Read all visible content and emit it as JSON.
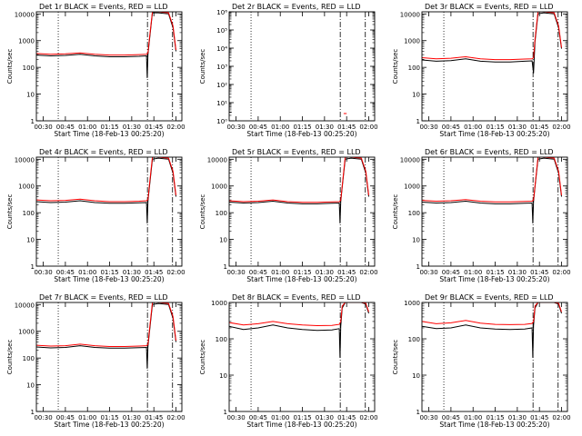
{
  "x_ticks": [
    "00:30",
    "00:45",
    "01:00",
    "01:15",
    "01:30",
    "01:45",
    "02:00"
  ],
  "xlabel": "Start Time (18-Feb-13 00:25:20)",
  "ylabel": "Counts/sec",
  "colors": {
    "events": "#000000",
    "lld": "#ff0000"
  },
  "chart_data": [
    {
      "type": "line",
      "title": "Det 1r BLACK = Events, RED = LLD",
      "ylog": true,
      "ylim": [
        1,
        12000
      ],
      "y_ticks": [
        "1",
        "10",
        "100",
        "1000",
        "10000"
      ],
      "xlim": [
        "00:25:20",
        "02:04"
      ],
      "series": [
        {
          "name": "Events",
          "color": "#000000",
          "x": [
            "00:25:20",
            "00:35",
            "00:45",
            "00:55",
            "01:05",
            "01:15",
            "01:25",
            "01:35",
            "01:40",
            "01:40:30",
            "01:41",
            "01:42",
            "01:44",
            "01:48",
            "01:55",
            "01:58",
            "02:00"
          ],
          "y": [
            290,
            270,
            280,
            310,
            270,
            250,
            250,
            260,
            270,
            40,
            300,
            1000,
            11000,
            11000,
            10000,
            3000,
            400
          ]
        },
        {
          "name": "LLD",
          "color": "#ff0000",
          "x": [
            "00:25:20",
            "00:35",
            "00:45",
            "00:55",
            "01:05",
            "01:15",
            "01:25",
            "01:35",
            "01:40",
            "01:41",
            "01:42",
            "01:44",
            "01:48",
            "01:55",
            "01:58",
            "02:00"
          ],
          "y": [
            330,
            310,
            320,
            350,
            310,
            290,
            290,
            300,
            310,
            350,
            1200,
            12000,
            12000,
            11000,
            3500,
            450
          ]
        }
      ]
    },
    {
      "type": "line",
      "title": "Det 2r BLACK = Events, RED = LLD",
      "ylog": true,
      "ylim": [
        1,
        1000000
      ],
      "y_ticks": [
        "10⁰",
        "10¹",
        "10²",
        "10³",
        "10⁴",
        "10⁵",
        "10⁶"
      ],
      "xlim": [
        "00:25:20",
        "02:04"
      ],
      "series": [
        {
          "name": "Events",
          "color": "#000000",
          "x": [
            "00:25:20",
            "00:27"
          ],
          "y": [
            3,
            3
          ]
        },
        {
          "name": "LLD",
          "color": "#ff0000",
          "x": [
            "01:43",
            "01:45"
          ],
          "y": [
            2.5,
            2.5
          ]
        }
      ]
    },
    {
      "type": "line",
      "title": "Det 3r BLACK = Events, RED = LLD",
      "ylog": true,
      "ylim": [
        1,
        12000
      ],
      "y_ticks": [
        "1",
        "10",
        "100",
        "1000",
        "10000"
      ],
      "xlim": [
        "00:25:20",
        "02:04"
      ],
      "series": [
        {
          "name": "Events",
          "color": "#000000",
          "x": [
            "00:25:20",
            "00:35",
            "00:45",
            "00:55",
            "01:05",
            "01:15",
            "01:25",
            "01:35",
            "01:40",
            "01:41",
            "01:42",
            "01:44",
            "01:48",
            "01:55",
            "01:58",
            "02:00"
          ],
          "y": [
            190,
            170,
            180,
            210,
            170,
            160,
            160,
            170,
            175,
            60,
            900,
            10000,
            11000,
            10000,
            3000,
            500
          ]
        },
        {
          "name": "LLD",
          "color": "#ff0000",
          "x": [
            "00:25:20",
            "00:35",
            "00:45",
            "00:55",
            "01:05",
            "01:15",
            "01:25",
            "01:35",
            "01:40",
            "01:41",
            "01:42",
            "01:44",
            "01:48",
            "01:55",
            "01:58",
            "02:00"
          ],
          "y": [
            230,
            210,
            220,
            250,
            210,
            195,
            195,
            205,
            210,
            230,
            1100,
            12000,
            12000,
            11000,
            3500,
            550
          ]
        }
      ]
    },
    {
      "type": "line",
      "title": "Det 4r BLACK = Events, RED = LLD",
      "ylog": true,
      "ylim": [
        1,
        12000
      ],
      "y_ticks": [
        "1",
        "10",
        "100",
        "1000",
        "10000"
      ],
      "xlim": [
        "00:25:20",
        "02:04"
      ],
      "series": [
        {
          "name": "Events",
          "color": "#000000",
          "x": [
            "00:25:20",
            "00:35",
            "00:45",
            "00:55",
            "01:05",
            "01:15",
            "01:25",
            "01:35",
            "01:40",
            "01:40:30",
            "01:41",
            "01:42",
            "01:44",
            "01:48",
            "01:55",
            "01:58",
            "02:00"
          ],
          "y": [
            260,
            240,
            250,
            280,
            240,
            225,
            225,
            235,
            240,
            40,
            270,
            900,
            10000,
            11000,
            10000,
            3000,
            400
          ]
        },
        {
          "name": "LLD",
          "color": "#ff0000",
          "x": [
            "00:25:20",
            "00:35",
            "00:45",
            "00:55",
            "01:05",
            "01:15",
            "01:25",
            "01:35",
            "01:40",
            "01:41",
            "01:42",
            "01:44",
            "01:48",
            "01:55",
            "01:58",
            "02:00"
          ],
          "y": [
            300,
            280,
            290,
            320,
            280,
            260,
            260,
            270,
            280,
            310,
            1100,
            12000,
            12000,
            11000,
            3500,
            450
          ]
        }
      ]
    },
    {
      "type": "line",
      "title": "Det 5r BLACK = Events, RED = LLD",
      "ylog": true,
      "ylim": [
        1,
        12000
      ],
      "y_ticks": [
        "1",
        "10",
        "100",
        "1000",
        "10000"
      ],
      "xlim": [
        "00:25:20",
        "02:04"
      ],
      "series": [
        {
          "name": "Events",
          "color": "#000000",
          "x": [
            "00:25:20",
            "00:35",
            "00:45",
            "00:55",
            "01:05",
            "01:15",
            "01:25",
            "01:35",
            "01:40",
            "01:40:30",
            "01:41",
            "01:42",
            "01:44",
            "01:48",
            "01:55",
            "01:58",
            "02:00"
          ],
          "y": [
            250,
            230,
            240,
            270,
            230,
            215,
            215,
            225,
            230,
            40,
            260,
            900,
            10000,
            11000,
            10000,
            3000,
            400
          ]
        },
        {
          "name": "LLD",
          "color": "#ff0000",
          "x": [
            "00:25:20",
            "00:35",
            "00:45",
            "00:55",
            "01:05",
            "01:15",
            "01:25",
            "01:35",
            "01:40",
            "01:41",
            "01:42",
            "01:44",
            "01:48",
            "01:55",
            "01:58",
            "02:00"
          ],
          "y": [
            280,
            260,
            270,
            300,
            260,
            245,
            245,
            255,
            260,
            290,
            1000,
            12000,
            12000,
            11000,
            3500,
            450
          ]
        }
      ]
    },
    {
      "type": "line",
      "title": "Det 6r BLACK = Events, RED = LLD",
      "ylog": true,
      "ylim": [
        1,
        12000
      ],
      "y_ticks": [
        "1",
        "10",
        "100",
        "1000",
        "10000"
      ],
      "xlim": [
        "00:25:20",
        "02:04"
      ],
      "series": [
        {
          "name": "Events",
          "color": "#000000",
          "x": [
            "00:25:20",
            "00:35",
            "00:45",
            "00:55",
            "01:05",
            "01:15",
            "01:25",
            "01:35",
            "01:40",
            "01:40:30",
            "01:41",
            "01:42",
            "01:44",
            "01:48",
            "01:55",
            "01:58",
            "02:00"
          ],
          "y": [
            250,
            230,
            240,
            270,
            230,
            215,
            215,
            225,
            230,
            40,
            260,
            900,
            10000,
            11000,
            10000,
            3000,
            400
          ]
        },
        {
          "name": "LLD",
          "color": "#ff0000",
          "x": [
            "00:25:20",
            "00:35",
            "00:45",
            "00:55",
            "01:05",
            "01:15",
            "01:25",
            "01:35",
            "01:40",
            "01:41",
            "01:42",
            "01:44",
            "01:48",
            "01:55",
            "01:58",
            "02:00"
          ],
          "y": [
            290,
            270,
            280,
            310,
            270,
            255,
            255,
            265,
            270,
            300,
            1000,
            12000,
            12000,
            11000,
            3500,
            450
          ]
        }
      ]
    },
    {
      "type": "line",
      "title": "Det 7r BLACK = Events, RED = LLD",
      "ylog": true,
      "ylim": [
        1,
        12000
      ],
      "y_ticks": [
        "1",
        "10",
        "100",
        "1000",
        "10000"
      ],
      "xlim": [
        "00:25:20",
        "02:04"
      ],
      "series": [
        {
          "name": "Events",
          "color": "#000000",
          "x": [
            "00:25:20",
            "00:35",
            "00:45",
            "00:55",
            "01:05",
            "01:15",
            "01:25",
            "01:35",
            "01:40",
            "01:40:30",
            "01:41",
            "01:42",
            "01:44",
            "01:48",
            "01:55",
            "01:58",
            "02:00"
          ],
          "y": [
            260,
            240,
            250,
            290,
            250,
            235,
            235,
            245,
            250,
            40,
            270,
            900,
            10000,
            11000,
            10000,
            3000,
            400
          ]
        },
        {
          "name": "LLD",
          "color": "#ff0000",
          "x": [
            "00:25:20",
            "00:35",
            "00:45",
            "00:55",
            "01:05",
            "01:15",
            "01:25",
            "01:35",
            "01:40",
            "01:41",
            "01:42",
            "01:44",
            "01:48",
            "01:55",
            "01:58",
            "02:00"
          ],
          "y": [
            300,
            280,
            290,
            330,
            290,
            270,
            270,
            280,
            290,
            320,
            1100,
            12000,
            12000,
            11000,
            3500,
            450
          ]
        }
      ]
    },
    {
      "type": "line",
      "title": "Det 8r BLACK = Events, RED = LLD",
      "ylog": true,
      "ylim": [
        1,
        1000
      ],
      "y_ticks": [
        "1",
        "10",
        "100",
        "1000"
      ],
      "xlim": [
        "00:25:20",
        "02:04"
      ],
      "series": [
        {
          "name": "Events",
          "color": "#000000",
          "x": [
            "00:25:20",
            "00:35",
            "00:45",
            "00:55",
            "01:05",
            "01:15",
            "01:25",
            "01:35",
            "01:40",
            "01:40:30",
            "01:41",
            "01:42",
            "01:44",
            "01:48",
            "01:55",
            "01:58",
            "02:00"
          ],
          "y": [
            220,
            180,
            200,
            240,
            200,
            180,
            170,
            175,
            190,
            30,
            220,
            700,
            1000,
            1000,
            1000,
            900,
            500
          ]
        },
        {
          "name": "LLD",
          "color": "#ff0000",
          "x": [
            "00:25:20",
            "00:35",
            "00:45",
            "00:55",
            "01:05",
            "01:15",
            "01:25",
            "01:35",
            "01:40",
            "01:41",
            "01:42",
            "01:44",
            "01:48",
            "01:55",
            "01:58",
            "02:00"
          ],
          "y": [
            280,
            240,
            260,
            300,
            260,
            240,
            230,
            235,
            250,
            300,
            800,
            1000,
            1000,
            1000,
            950,
            550
          ]
        }
      ]
    },
    {
      "type": "line",
      "title": "Det 9r BLACK = Events, RED = LLD",
      "ylog": true,
      "ylim": [
        1,
        1000
      ],
      "y_ticks": [
        "1",
        "10",
        "100",
        "1000"
      ],
      "xlim": [
        "00:25:20",
        "02:04"
      ],
      "series": [
        {
          "name": "Events",
          "color": "#000000",
          "x": [
            "00:25:20",
            "00:35",
            "00:45",
            "00:55",
            "01:05",
            "01:15",
            "01:25",
            "01:35",
            "01:40",
            "01:40:30",
            "01:41",
            "01:42",
            "01:44",
            "01:48",
            "01:55",
            "01:58",
            "02:00"
          ],
          "y": [
            220,
            190,
            200,
            240,
            200,
            185,
            180,
            185,
            200,
            30,
            230,
            700,
            1000,
            1000,
            1000,
            900,
            500
          ]
        },
        {
          "name": "LLD",
          "color": "#ff0000",
          "x": [
            "00:25:20",
            "00:35",
            "00:45",
            "00:55",
            "01:05",
            "01:15",
            "01:25",
            "01:35",
            "01:40",
            "01:41",
            "01:42",
            "01:44",
            "01:48",
            "01:55",
            "01:58",
            "02:00"
          ],
          "y": [
            300,
            260,
            275,
            320,
            270,
            250,
            245,
            250,
            265,
            300,
            800,
            1000,
            1000,
            1000,
            950,
            550
          ]
        }
      ]
    }
  ]
}
